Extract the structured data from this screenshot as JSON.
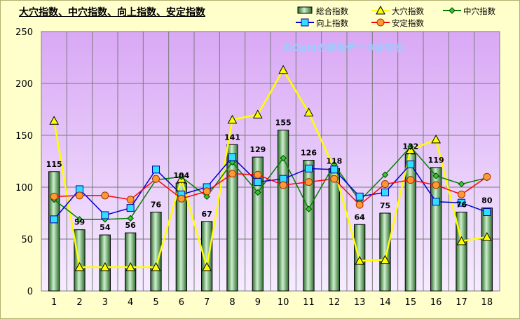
{
  "chart_data": {
    "type": "bar+line",
    "title": "大穴指数、中穴指数、向上指数、安定指数",
    "watermark": "©Caniの競馬データ研究室",
    "categories": [
      "1",
      "2",
      "3",
      "4",
      "5",
      "6",
      "7",
      "8",
      "9",
      "10",
      "11",
      "12",
      "13",
      "14",
      "15",
      "16",
      "17",
      "18"
    ],
    "ylim": [
      0,
      250
    ],
    "yticks": [
      0,
      50,
      100,
      150,
      200,
      250
    ],
    "grid": true,
    "legend_position": "top-right",
    "series": [
      {
        "name": "総合指数",
        "kind": "bar",
        "color": "#99cc99",
        "values": [
          115,
          59,
          54,
          56,
          76,
          104,
          67,
          141,
          129,
          155,
          126,
          118,
          64,
          75,
          132,
          119,
          76,
          80
        ],
        "labels": [
          "115",
          "59",
          "54",
          "56",
          "76",
          "104",
          "67",
          "141",
          "129",
          "155",
          "126",
          "118",
          "64",
          "75",
          "132",
          "119",
          "76",
          "80"
        ]
      },
      {
        "name": "大穴指数",
        "kind": "line",
        "color": "#ffff00",
        "marker": "triangle",
        "values": [
          164,
          23,
          23,
          23,
          23,
          108,
          23,
          165,
          170,
          213,
          172,
          118,
          29,
          30,
          136,
          146,
          48,
          52
        ]
      },
      {
        "name": "中穴指数",
        "kind": "line",
        "color": "#008000",
        "marker": "diamond",
        "values": [
          88,
          69,
          69,
          70,
          107,
          110,
          91,
          124,
          95,
          128,
          79,
          122,
          87,
          112,
          139,
          111,
          103,
          109
        ]
      },
      {
        "name": "向上指数",
        "kind": "line",
        "color": "#0000cc",
        "marker": "square",
        "values": [
          69,
          98,
          73,
          80,
          117,
          93,
          100,
          129,
          105,
          108,
          118,
          117,
          91,
          95,
          122,
          86,
          85,
          76
        ]
      },
      {
        "name": "安定指数",
        "kind": "line",
        "color": "#ff0000",
        "marker": "circle",
        "values": [
          91,
          92,
          92,
          88,
          108,
          89,
          96,
          113,
          112,
          102,
          105,
          108,
          83,
          103,
          107,
          102,
          93,
          110
        ]
      }
    ]
  }
}
